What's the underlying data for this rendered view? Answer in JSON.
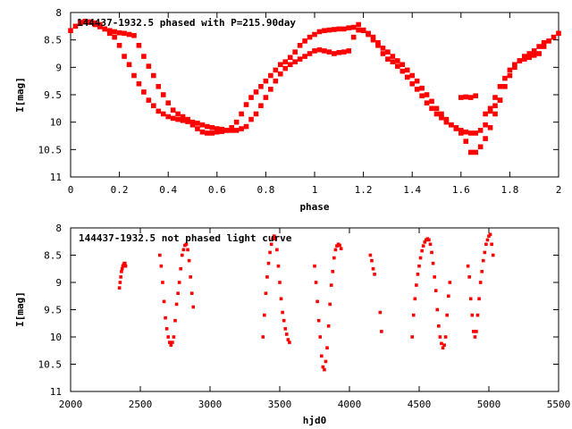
{
  "chart_data": [
    {
      "type": "scatter",
      "title": "144437-1932.5 phased with P=215.90day",
      "xlabel": "phase",
      "ylabel": "I[mag]",
      "xlim": [
        0,
        2
      ],
      "ylim": [
        11,
        8
      ],
      "y_inverted": true,
      "x_ticks": [
        "0",
        "0.2",
        "0.4",
        "0.6",
        "0.8",
        "1",
        "1.2",
        "1.4",
        "1.6",
        "1.8",
        "2"
      ],
      "y_ticks": [
        "8",
        "8.5",
        "9",
        "9.5",
        "10",
        "10.5",
        "11"
      ],
      "grid": false,
      "marker_color": "#ff0000",
      "series": [
        {
          "x": [
            0.0,
            0.02,
            0.04,
            0.06,
            0.08,
            0.1,
            0.12,
            0.14,
            0.16,
            0.18,
            0.2,
            0.22,
            0.24,
            0.26,
            0.28,
            0.3,
            0.32,
            0.34,
            0.36,
            0.38,
            0.4,
            0.42,
            0.44,
            0.46,
            0.48,
            0.5,
            0.52,
            0.54,
            0.56,
            0.58,
            0.6,
            0.62,
            0.64,
            0.66,
            0.68,
            0.7,
            0.72,
            0.74,
            0.76,
            0.78,
            0.8,
            0.82,
            0.84,
            0.86,
            0.88,
            0.9,
            0.92,
            0.94,
            0.96,
            0.98,
            1.0,
            1.02,
            1.04,
            1.06,
            1.08,
            1.1,
            1.12,
            1.14,
            1.16,
            1.18,
            1.2,
            1.22,
            1.24,
            1.26,
            1.28,
            1.3,
            1.32,
            1.34,
            1.36,
            1.38,
            1.4,
            1.42,
            1.44,
            1.46,
            1.48,
            1.5,
            1.52,
            1.54,
            1.56,
            1.58,
            1.6,
            1.62,
            1.64,
            1.66,
            1.68,
            1.7,
            1.72,
            1.74,
            1.76,
            1.78,
            1.8,
            1.82,
            1.84,
            1.86,
            1.88,
            1.9,
            1.92,
            1.94,
            1.96,
            1.98,
            2.0
          ],
          "y": [
            8.33,
            8.25,
            8.2,
            8.17,
            8.17,
            8.19,
            8.22,
            8.3,
            8.38,
            8.45,
            8.6,
            8.8,
            8.95,
            9.15,
            9.3,
            9.45,
            9.6,
            9.7,
            9.8,
            9.85,
            9.9,
            9.93,
            9.95,
            9.97,
            9.99,
            10.0,
            10.02,
            10.05,
            10.08,
            10.1,
            10.12,
            10.13,
            10.15,
            10.15,
            10.15,
            10.12,
            10.08,
            9.95,
            9.85,
            9.7,
            9.55,
            9.4,
            9.25,
            9.12,
            9.02,
            8.95,
            8.9,
            8.85,
            8.8,
            8.75,
            8.7,
            8.68,
            8.7,
            8.72,
            8.75,
            8.73,
            8.72,
            8.7,
            8.45,
            8.32,
            8.33,
            8.4,
            8.5,
            8.6,
            8.75,
            8.85,
            8.9,
            8.98,
            9.07,
            9.18,
            9.3,
            9.4,
            9.52,
            9.65,
            9.75,
            9.85,
            9.92,
            10.0,
            10.05,
            10.1,
            10.15,
            10.18,
            10.2,
            10.2,
            10.15,
            10.05,
            9.8,
            9.55,
            9.35,
            9.2,
            9.05,
            8.95,
            8.88,
            8.85,
            8.82,
            8.78,
            8.75,
            8.62,
            8.52,
            8.45,
            8.38
          ]
        },
        {
          "x": [
            0.04,
            0.06,
            0.08,
            0.1,
            0.12,
            0.14,
            0.16,
            0.18,
            0.2,
            0.22,
            0.24,
            0.26,
            0.28,
            0.3,
            0.32,
            0.34,
            0.36,
            0.38,
            0.4,
            0.42,
            0.44,
            0.46,
            0.48,
            0.5,
            0.52,
            0.54,
            0.56,
            0.58,
            0.6,
            0.62,
            0.64,
            0.66,
            0.68,
            0.7,
            0.72,
            0.74,
            0.76,
            0.78,
            0.8,
            0.82,
            0.84,
            0.86,
            0.88,
            0.9,
            0.92,
            0.94,
            0.96,
            0.98,
            1.0,
            1.02,
            1.04,
            1.06,
            1.08,
            1.1,
            1.12,
            1.14,
            1.16,
            1.18,
            1.2,
            1.22,
            1.24,
            1.26,
            1.28,
            1.3,
            1.32,
            1.34,
            1.36,
            1.38,
            1.4,
            1.42,
            1.44,
            1.46,
            1.48,
            1.5,
            1.52,
            1.54,
            1.56,
            1.58,
            1.6,
            1.62,
            1.64,
            1.66,
            1.68,
            1.7,
            1.72,
            1.74,
            1.76,
            1.78,
            1.8,
            1.82,
            1.84,
            1.86,
            1.88,
            1.9,
            1.92,
            1.94
          ],
          "y": [
            8.18,
            8.16,
            8.18,
            8.22,
            8.26,
            8.3,
            8.33,
            8.35,
            8.37,
            8.38,
            8.4,
            8.42,
            8.6,
            8.8,
            8.98,
            9.15,
            9.35,
            9.5,
            9.65,
            9.78,
            9.85,
            9.9,
            9.95,
            10.05,
            10.12,
            10.18,
            10.2,
            10.2,
            10.18,
            10.17,
            10.15,
            10.1,
            10.0,
            9.85,
            9.68,
            9.55,
            9.45,
            9.35,
            9.25,
            9.15,
            9.05,
            8.95,
            8.9,
            8.82,
            8.72,
            8.6,
            8.52,
            8.45,
            8.4,
            8.35,
            8.33,
            8.32,
            8.31,
            8.3,
            8.3,
            8.28,
            8.27,
            8.22,
            8.32,
            8.38,
            8.45,
            8.55,
            8.65,
            8.72,
            8.8,
            8.88,
            8.95,
            9.05,
            9.15,
            9.25,
            9.38,
            9.5,
            9.62,
            9.75,
            9.85,
            9.95,
            10.05,
            10.12,
            10.2,
            10.35,
            10.55,
            10.55,
            10.45,
            10.3,
            10.1,
            9.85,
            9.6,
            9.35,
            9.15,
            9.0,
            8.88,
            8.8,
            8.75,
            8.7,
            8.62,
            8.55
          ]
        },
        {
          "x": [
            1.6,
            1.62,
            1.64,
            1.66,
            1.7,
            1.72,
            1.74,
            1.76
          ],
          "y": [
            9.55,
            9.54,
            9.55,
            9.52,
            9.85,
            9.75,
            9.7,
            9.6
          ]
        }
      ]
    },
    {
      "type": "scatter",
      "title": "144437-1932.5 not phased light curve",
      "xlabel": "hjd0",
      "ylabel": "I[mag]",
      "xlim": [
        2000,
        5500
      ],
      "ylim": [
        11,
        8
      ],
      "y_inverted": true,
      "x_ticks": [
        "2000",
        "2500",
        "3000",
        "3500",
        "4000",
        "4500",
        "5000",
        "5500"
      ],
      "y_ticks": [
        "8",
        "8.5",
        "9",
        "9.5",
        "10",
        "10.5",
        "11"
      ],
      "grid": false,
      "marker_color": "#ff0000",
      "series": [
        {
          "x": [
            2350,
            2355,
            2360,
            2365,
            2370,
            2375,
            2380,
            2385,
            2390,
            2395,
            2640,
            2650,
            2660,
            2670,
            2680,
            2690,
            2700,
            2710,
            2720,
            2730,
            2740,
            2750,
            2760,
            2770,
            2780,
            2790,
            2800,
            2810,
            2820,
            2830,
            2840,
            2850,
            2860,
            2870,
            2880,
            3380,
            3390,
            3400,
            3410,
            3420,
            3430,
            3440,
            3450,
            3460,
            3470,
            3480,
            3490,
            3500,
            3510,
            3520,
            3530,
            3540,
            3550,
            3560,
            3570,
            3750,
            3760,
            3770,
            3780,
            3790,
            3800,
            3810,
            3820,
            3830,
            3840,
            3850,
            3860,
            3870,
            3880,
            3890,
            3900,
            3910,
            3920,
            3930,
            3940,
            4150,
            4160,
            4170,
            4180,
            4220,
            4230,
            4450,
            4460,
            4470,
            4480,
            4490,
            4500,
            4510,
            4520,
            4530,
            4540,
            4550,
            4560,
            4570,
            4580,
            4590,
            4600,
            4610,
            4620,
            4630,
            4640,
            4650,
            4660,
            4670,
            4680,
            4690,
            4700,
            4710,
            4720,
            4850,
            4860,
            4870,
            4880,
            4890,
            4900,
            4910,
            4920,
            4930,
            4940,
            4950,
            4960,
            4970,
            4980,
            4990,
            5000,
            5010,
            5020,
            5030
          ],
          "y": [
            9.1,
            9.0,
            8.9,
            8.8,
            8.75,
            8.7,
            8.68,
            8.65,
            8.65,
            8.7,
            8.5,
            8.7,
            9.0,
            9.35,
            9.65,
            9.85,
            10.0,
            10.1,
            10.15,
            10.1,
            10.0,
            9.7,
            9.4,
            9.2,
            9.0,
            8.75,
            8.5,
            8.4,
            8.32,
            8.3,
            8.4,
            8.6,
            8.9,
            9.2,
            9.45,
            10.0,
            9.6,
            9.2,
            8.9,
            8.65,
            8.45,
            8.3,
            8.2,
            8.15,
            8.2,
            8.4,
            8.7,
            9.0,
            9.3,
            9.55,
            9.7,
            9.85,
            9.95,
            10.05,
            10.1,
            8.7,
            9.0,
            9.35,
            9.7,
            10.0,
            10.35,
            10.55,
            10.6,
            10.45,
            10.2,
            9.8,
            9.4,
            9.05,
            8.8,
            8.55,
            8.4,
            8.33,
            8.3,
            8.32,
            8.38,
            8.5,
            8.6,
            8.75,
            8.85,
            9.55,
            9.9,
            10.0,
            9.6,
            9.3,
            9.05,
            8.85,
            8.7,
            8.55,
            8.42,
            8.33,
            8.26,
            8.22,
            8.2,
            8.22,
            8.3,
            8.45,
            8.65,
            8.9,
            9.15,
            9.5,
            9.8,
            10.0,
            10.12,
            10.2,
            10.15,
            10.0,
            9.6,
            9.25,
            9.0,
            8.7,
            8.9,
            9.3,
            9.6,
            9.9,
            10.0,
            9.9,
            9.6,
            9.3,
            9.0,
            8.8,
            8.6,
            8.45,
            8.3,
            8.22,
            8.15,
            8.12,
            8.3,
            8.5
          ]
        }
      ]
    }
  ]
}
